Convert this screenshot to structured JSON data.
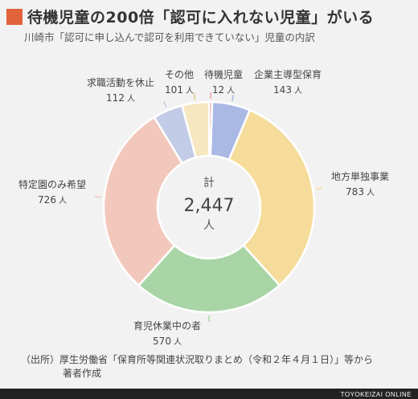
{
  "title": "待機児童の200倍「認可に入れない児童」がいる",
  "subtitle": "川崎市「認可に申し込んで認可を利用できていない」児童の内訳",
  "source_line1": "（出所）厚生労働省「保育所等関連状況取りまとめ（令和２年４月１日）」等から",
  "source_line2": "著者作成",
  "footer": "TOYOKEIZAI ONLINE",
  "colors": {
    "title_square": "#e0633a",
    "footer_bg": "#222222"
  },
  "chart_data": {
    "type": "pie",
    "donut": true,
    "center_label": "計",
    "total": "2,447",
    "unit": "人",
    "slices": [
      {
        "label": "待機児童",
        "value": 12,
        "value_text": "12",
        "color": "#e8a6a6"
      },
      {
        "label": "企業主導型保育",
        "value": 143,
        "value_text": "143",
        "color": "#a9b9e3"
      },
      {
        "label": "地方単独事業",
        "value": 783,
        "value_text": "783",
        "color": "#f6dc9a"
      },
      {
        "label": "育児休業中の者",
        "value": 570,
        "value_text": "570",
        "color": "#a9d5a6"
      },
      {
        "label": "特定園のみ希望",
        "value": 726,
        "value_text": "726",
        "color": "#f2c8bd"
      },
      {
        "label": "求職活動を休止",
        "value": 112,
        "value_text": "112",
        "color": "#c3cce6"
      },
      {
        "label": "その他",
        "value": 101,
        "value_text": "101",
        "color": "#f6e7c0"
      }
    ]
  }
}
